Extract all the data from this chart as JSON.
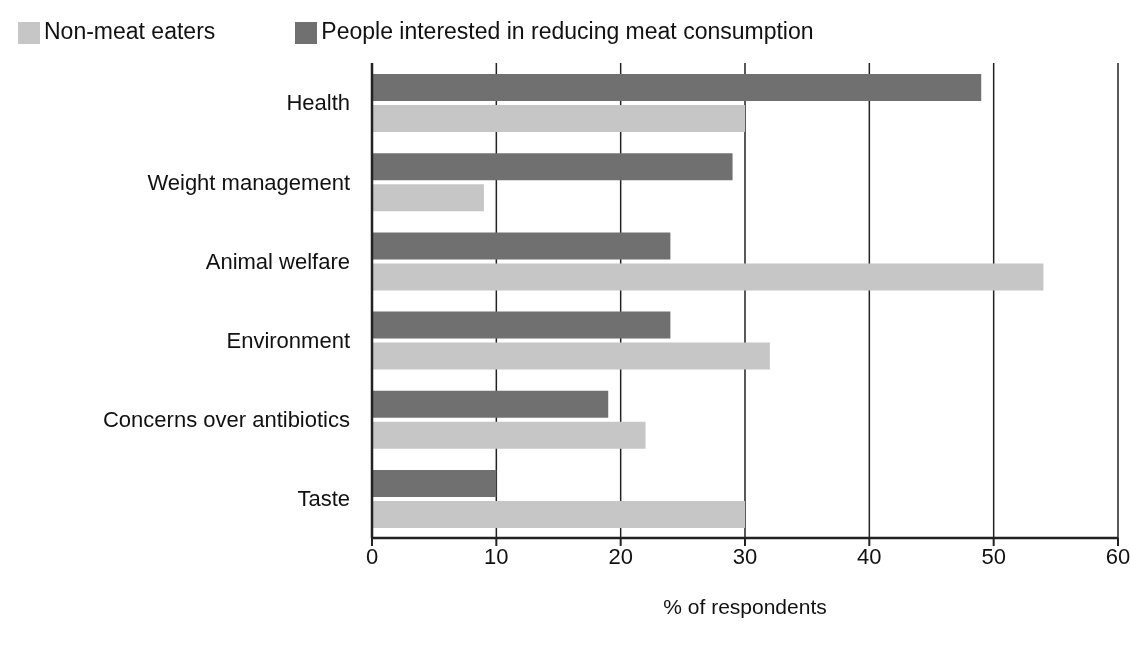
{
  "chart_data": {
    "type": "bar",
    "orientation": "horizontal",
    "xlabel": "% of respondents",
    "categories": [
      "Health",
      "Weight management",
      "Animal welfare",
      "Environment",
      "Concerns over antibiotics",
      "Taste"
    ],
    "series": [
      {
        "name": "People interested in reducing meat consumption",
        "color": "#707070",
        "values": [
          49,
          29,
          24,
          24,
          19,
          10
        ]
      },
      {
        "name": "Non-meat eaters",
        "color": "#c6c6c6",
        "values": [
          30,
          9,
          54,
          32,
          22,
          30
        ]
      }
    ],
    "xlim": [
      0,
      60
    ],
    "xticks": [
      0,
      10,
      20,
      30,
      40,
      50,
      60
    ],
    "grid": "x",
    "legend": "top"
  }
}
